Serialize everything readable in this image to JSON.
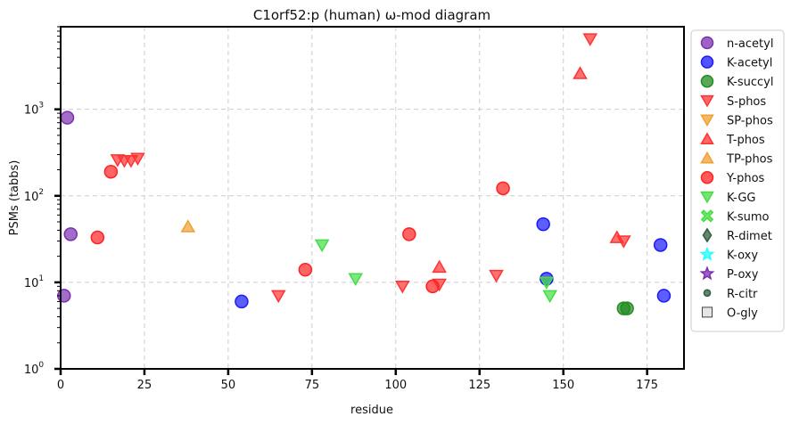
{
  "chart_data": {
    "type": "scatter",
    "title": "C1orf52:p (human) ω-mod diagram",
    "xlabel": "residue",
    "ylabel": "PSMs (tabbs)",
    "xlim": [
      0,
      186
    ],
    "ylim": [
      1,
      9000
    ],
    "yscale": "log",
    "x_ticks": [
      0,
      25,
      50,
      75,
      100,
      125,
      150,
      175
    ],
    "x_tick_labels": [
      "0",
      "25",
      "50",
      "75",
      "100",
      "125",
      "150",
      "175"
    ],
    "y_ticks": [
      1,
      10,
      100,
      1000
    ],
    "y_tick_labels": [
      "10",
      "10",
      "10",
      "10"
    ],
    "y_tick_exponents": [
      "0",
      "1",
      "2",
      "3"
    ],
    "grid": true,
    "legend_position": "outside-right",
    "series": [
      {
        "name": "n-acetyl",
        "marker": "circle",
        "color": "#7b2fb0",
        "points": [
          [
            2,
            800
          ],
          [
            3,
            36
          ],
          [
            1,
            7
          ]
        ]
      },
      {
        "name": "K-acetyl",
        "marker": "circle",
        "color": "#1a1aff",
        "points": [
          [
            54,
            6
          ],
          [
            144,
            47
          ],
          [
            145,
            11
          ],
          [
            179,
            27
          ],
          [
            180,
            7
          ]
        ]
      },
      {
        "name": "K-succyl",
        "marker": "circle",
        "color": "#228b22",
        "points": [
          [
            168,
            5
          ],
          [
            169,
            5
          ]
        ]
      },
      {
        "name": "S-phos",
        "marker": "triangle-down",
        "color": "#ff3333",
        "points": [
          [
            17,
            260
          ],
          [
            19,
            255
          ],
          [
            21,
            255
          ],
          [
            23,
            270
          ],
          [
            65,
            7
          ],
          [
            102,
            9
          ],
          [
            113,
            9.5
          ],
          [
            130,
            12
          ],
          [
            158,
            6500
          ],
          [
            168,
            30
          ]
        ]
      },
      {
        "name": "SP-phos",
        "marker": "triangle-down",
        "color": "#f0a030",
        "points": []
      },
      {
        "name": "T-phos",
        "marker": "triangle-up",
        "color": "#ff3333",
        "points": [
          [
            113,
            15
          ],
          [
            155,
            2600
          ],
          [
            166,
            33
          ]
        ]
      },
      {
        "name": "TP-phos",
        "marker": "triangle-up",
        "color": "#f0a030",
        "points": [
          [
            38,
            44
          ]
        ]
      },
      {
        "name": "Y-phos",
        "marker": "circle",
        "color": "#ff2222",
        "points": [
          [
            15,
            190
          ],
          [
            11,
            33
          ],
          [
            73,
            14
          ],
          [
            104,
            36
          ],
          [
            111,
            9
          ],
          [
            132,
            122
          ]
        ]
      },
      {
        "name": "K-GG",
        "marker": "triangle-down",
        "color": "#44dd44",
        "points": [
          [
            78,
            27
          ],
          [
            88,
            11
          ],
          [
            145,
            10
          ],
          [
            146,
            7
          ]
        ]
      },
      {
        "name": "K-sumo",
        "marker": "x",
        "color": "#44dd44",
        "points": []
      },
      {
        "name": "R-dimet",
        "marker": "diamond",
        "color": "#2e5e3e",
        "points": []
      },
      {
        "name": "K-oxy",
        "marker": "star",
        "color": "#22ffff",
        "points": []
      },
      {
        "name": "P-oxy",
        "marker": "star",
        "color": "#7b2fb0",
        "points": []
      },
      {
        "name": "R-citr",
        "marker": "small-circle",
        "color": "#2e5e3e",
        "points": []
      },
      {
        "name": "O-gly",
        "marker": "square",
        "color": "#dddddd",
        "points": []
      }
    ]
  }
}
